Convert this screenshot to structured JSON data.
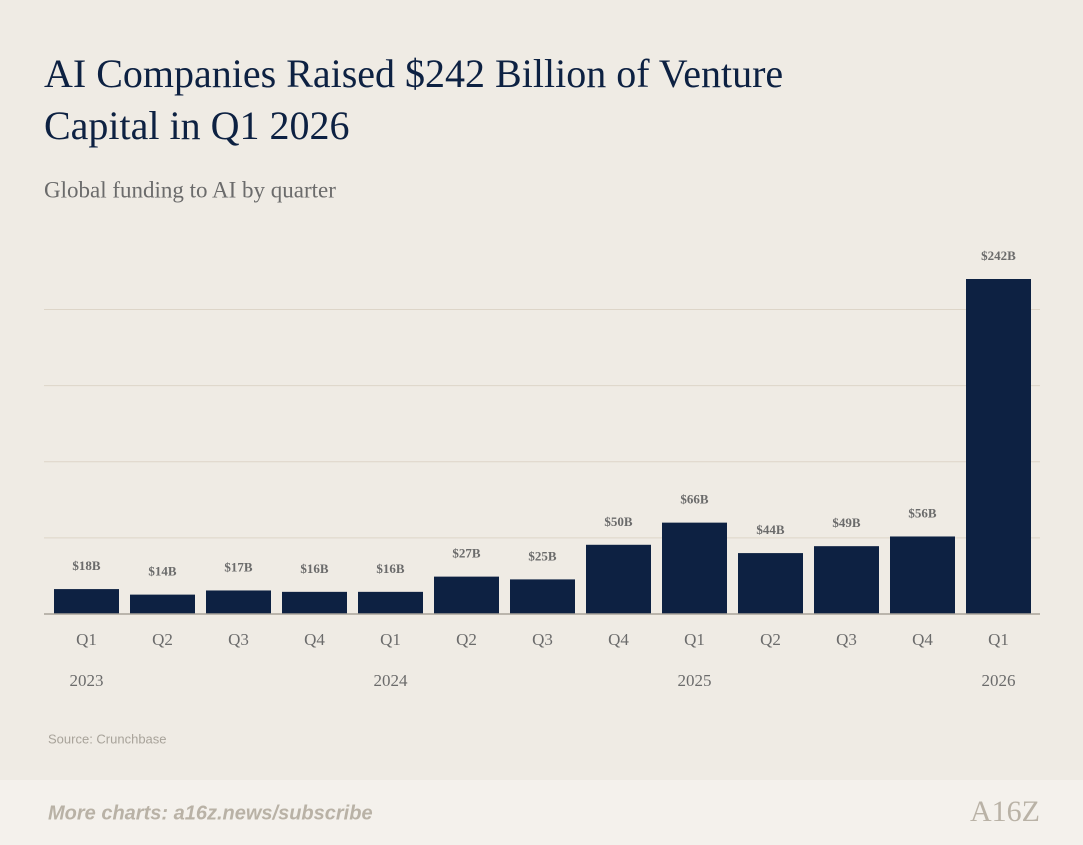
{
  "chart_data": {
    "type": "bar",
    "title": "AI Companies Raised $242 Billion of Venture",
    "title_line2": "Capital in Q1 2026",
    "subtitle": "Global funding to AI by quarter",
    "categories": [
      "Q1",
      "Q2",
      "Q3",
      "Q4",
      "Q1",
      "Q2",
      "Q3",
      "Q4",
      "Q1",
      "Q2",
      "Q3",
      "Q4",
      "Q1"
    ],
    "groups": [
      "2023",
      null,
      null,
      null,
      "2024",
      null,
      null,
      null,
      "2025",
      null,
      null,
      null,
      "2026"
    ],
    "values": [
      18,
      14,
      17,
      16,
      16,
      27,
      25,
      50,
      66,
      44,
      49,
      56,
      242
    ],
    "value_labels": [
      "$18B",
      "$14B",
      "$17B",
      "$16B",
      "$16B",
      "$27B",
      "$25B",
      "$50B",
      "$66B",
      "$44B",
      "$49B",
      "$56B",
      "$242B"
    ],
    "color": "#0d2142",
    "ylim": [
      0,
      242
    ],
    "yticks": [
      55,
      110,
      165,
      220
    ],
    "grid": true,
    "source": "Source: Crunchbase",
    "footer": "More charts: a16z.news/subscribe",
    "logo": "A16Z"
  }
}
